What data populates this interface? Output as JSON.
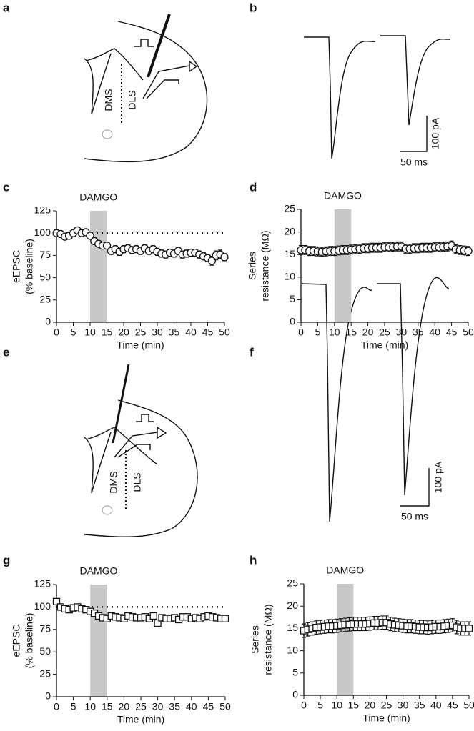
{
  "panel_labels": [
    "a",
    "b",
    "c",
    "d",
    "e",
    "f",
    "g",
    "h"
  ],
  "diagrams": [
    {
      "labels": [
        "DMS",
        "DLS"
      ]
    },
    {
      "labels": [
        "DMS",
        "DLS"
      ]
    }
  ],
  "traces": [
    {
      "scale_labels": [
        "100 pA",
        "50 ms"
      ]
    },
    {
      "scale_labels": [
        "100 pA",
        "50 ms"
      ]
    }
  ],
  "chart_data": [
    {
      "type": "scatter",
      "marker": "circle",
      "annotation": "DAMGO",
      "shade": [
        10,
        15
      ],
      "reference_line": 100,
      "xlabel": "Time (min)",
      "ylabel": [
        "eEPSC",
        "(% baseline)"
      ],
      "xlim": [
        0,
        50
      ],
      "xticks": [
        0,
        5,
        10,
        15,
        20,
        25,
        30,
        35,
        40,
        45,
        50
      ],
      "ylim": [
        0,
        125
      ],
      "yticks": [
        0,
        25,
        50,
        75,
        100,
        125
      ],
      "x": [
        0,
        1.25,
        2.5,
        3.75,
        5,
        6.25,
        7.5,
        8.75,
        10,
        11.25,
        12.5,
        13.75,
        15,
        16.25,
        17.5,
        18.75,
        20,
        21.25,
        22.5,
        23.75,
        25,
        26.25,
        27.5,
        28.75,
        30,
        31.25,
        32.5,
        33.75,
        35,
        36.25,
        37.5,
        38.75,
        40,
        41.25,
        42.5,
        43.75,
        45,
        46.25,
        47.5,
        48.75,
        50
      ],
      "values": [
        100,
        99,
        96,
        97,
        100,
        103,
        100,
        101,
        97,
        91,
        88,
        86,
        86,
        80,
        82,
        79,
        82,
        83,
        81,
        82,
        80,
        83,
        80,
        82,
        79,
        77,
        76,
        78,
        77,
        80,
        76,
        77,
        78,
        78,
        76,
        74,
        72,
        69,
        75,
        76,
        73
      ],
      "errors": [
        2,
        2,
        3,
        2,
        2,
        3,
        2,
        2,
        3,
        3,
        3,
        3,
        3,
        4,
        4,
        4,
        4,
        4,
        4,
        4,
        4,
        4,
        4,
        4,
        4,
        4,
        4,
        4,
        4,
        4,
        4,
        4,
        4,
        4,
        4,
        4,
        4,
        5,
        5,
        5,
        4
      ]
    },
    {
      "type": "scatter",
      "marker": "circle",
      "annotation": "DAMGO",
      "shade": [
        10,
        15
      ],
      "xlabel": "Time (min)",
      "ylabel": [
        "Series",
        "resistance (MΩ)"
      ],
      "xlim": [
        0,
        50
      ],
      "xticks": [
        0,
        5,
        10,
        15,
        20,
        25,
        30,
        35,
        40,
        45,
        50
      ],
      "ylim": [
        0,
        25
      ],
      "yticks": [
        0,
        5,
        10,
        15,
        20,
        25
      ],
      "x": [
        0,
        1.25,
        2.5,
        3.75,
        5,
        6.25,
        7.5,
        8.75,
        10,
        11.25,
        12.5,
        13.75,
        15,
        16.25,
        17.5,
        18.75,
        20,
        21.25,
        22.5,
        23.75,
        25,
        26.25,
        27.5,
        28.75,
        30,
        31.25,
        32.5,
        33.75,
        35,
        36.25,
        37.5,
        38.75,
        40,
        41.25,
        42.5,
        43.75,
        45,
        46.25,
        47.5,
        48.75,
        50
      ],
      "values": [
        16,
        16,
        15.8,
        15.8,
        15.7,
        15.6,
        15.7,
        15.8,
        15.8,
        15.9,
        16,
        16,
        16.1,
        16.2,
        16.3,
        16.4,
        16.4,
        16.5,
        16.5,
        16.5,
        16.6,
        16.6,
        16.7,
        16.8,
        16.8,
        16.3,
        16.3,
        16.4,
        16.4,
        16.5,
        16.5,
        16.5,
        16.6,
        16.6,
        16.7,
        16.8,
        17,
        16.2,
        16,
        15.9,
        15.8
      ],
      "errors": [
        1,
        1,
        1,
        1,
        1,
        1,
        1,
        1,
        1,
        1,
        1,
        1,
        1,
        1,
        1,
        1,
        1,
        1,
        1,
        1,
        1,
        1,
        1,
        1,
        1,
        1,
        1,
        1,
        1,
        1,
        1,
        1,
        1,
        1,
        1,
        1,
        1,
        1,
        1,
        1,
        1
      ]
    },
    {
      "type": "scatter",
      "marker": "square",
      "annotation": "DAMGO",
      "shade": [
        10,
        15
      ],
      "reference_line": 100,
      "xlabel": "Time (min)",
      "ylabel": [
        "eEPSC",
        "(% baseline)"
      ],
      "xlim": [
        0,
        50
      ],
      "xticks": [
        0,
        5,
        10,
        15,
        20,
        25,
        30,
        35,
        40,
        45,
        50
      ],
      "ylim": [
        0,
        125
      ],
      "yticks": [
        0,
        25,
        50,
        75,
        100,
        125
      ],
      "x": [
        0,
        1.25,
        2.5,
        3.75,
        5,
        6.25,
        7.5,
        8.75,
        10,
        11.25,
        12.5,
        13.75,
        15,
        16.25,
        17.5,
        18.75,
        20,
        21.25,
        22.5,
        23.75,
        25,
        26.25,
        27.5,
        28.75,
        30,
        31.25,
        32.5,
        33.75,
        35,
        36.25,
        37.5,
        38.75,
        40,
        41.25,
        42.5,
        43.75,
        45,
        46.25,
        47.5,
        48.75,
        50
      ],
      "values": [
        106,
        100,
        98,
        97,
        99,
        100,
        98,
        97,
        95,
        93,
        90,
        88,
        87,
        90,
        89,
        88,
        87,
        90,
        89,
        88,
        88,
        89,
        87,
        90,
        82,
        88,
        87,
        87,
        88,
        86,
        89,
        89,
        87,
        88,
        87,
        89,
        90,
        89,
        88,
        87,
        87
      ],
      "errors": [
        3,
        3,
        3,
        3,
        3,
        3,
        3,
        3,
        3,
        3,
        3,
        3,
        3,
        3,
        3,
        3,
        3,
        3,
        3,
        3,
        3,
        3,
        3,
        3,
        3,
        3,
        3,
        3,
        3,
        3,
        3,
        3,
        3,
        3,
        3,
        3,
        3,
        3,
        3,
        3,
        3
      ]
    },
    {
      "type": "scatter",
      "marker": "square",
      "annotation": "DAMGO",
      "shade": [
        10,
        15
      ],
      "xlabel": "Time (min)",
      "ylabel": [
        "Series",
        "resistance (MΩ)"
      ],
      "xlim": [
        0,
        50
      ],
      "xticks": [
        0,
        5,
        10,
        15,
        20,
        25,
        30,
        35,
        40,
        45,
        50
      ],
      "ylim": [
        0,
        25
      ],
      "yticks": [
        0,
        5,
        10,
        15,
        20,
        25
      ],
      "x": [
        0,
        1.25,
        2.5,
        3.75,
        5,
        6.25,
        7.5,
        8.75,
        10,
        11.25,
        12.5,
        13.75,
        15,
        16.25,
        17.5,
        18.75,
        20,
        21.25,
        22.5,
        23.75,
        25,
        26.25,
        27.5,
        28.75,
        30,
        31.25,
        32.5,
        33.75,
        35,
        36.25,
        37.5,
        38.75,
        40,
        41.25,
        42.5,
        43.75,
        45,
        46.25,
        47.5,
        48.75,
        50
      ],
      "values": [
        14.5,
        14.8,
        15,
        15.2,
        15.3,
        15.4,
        15.5,
        15.5,
        15.6,
        15.7,
        15.8,
        15.9,
        16,
        16,
        16,
        16,
        16.1,
        16.2,
        16.2,
        16.3,
        16.3,
        16,
        15.8,
        15.7,
        15.6,
        15.5,
        15.5,
        15.4,
        15.3,
        15.3,
        15.2,
        15.3,
        15.4,
        15.4,
        15.5,
        15.6,
        15.7,
        15.3,
        15,
        15,
        15
      ],
      "errors": [
        1.5,
        1.5,
        1.5,
        1.5,
        1.5,
        1.5,
        1.5,
        1.5,
        1.5,
        1.5,
        1.5,
        1.5,
        1.5,
        1.5,
        1.5,
        1.5,
        1.5,
        1.5,
        1.5,
        1.5,
        1.5,
        1.5,
        1.5,
        1.5,
        1.5,
        1.5,
        1.5,
        1.5,
        1.5,
        1.5,
        1.5,
        1.5,
        1.5,
        1.5,
        1.5,
        1.5,
        1.5,
        1.5,
        1.5,
        1.5,
        1.5
      ]
    }
  ]
}
